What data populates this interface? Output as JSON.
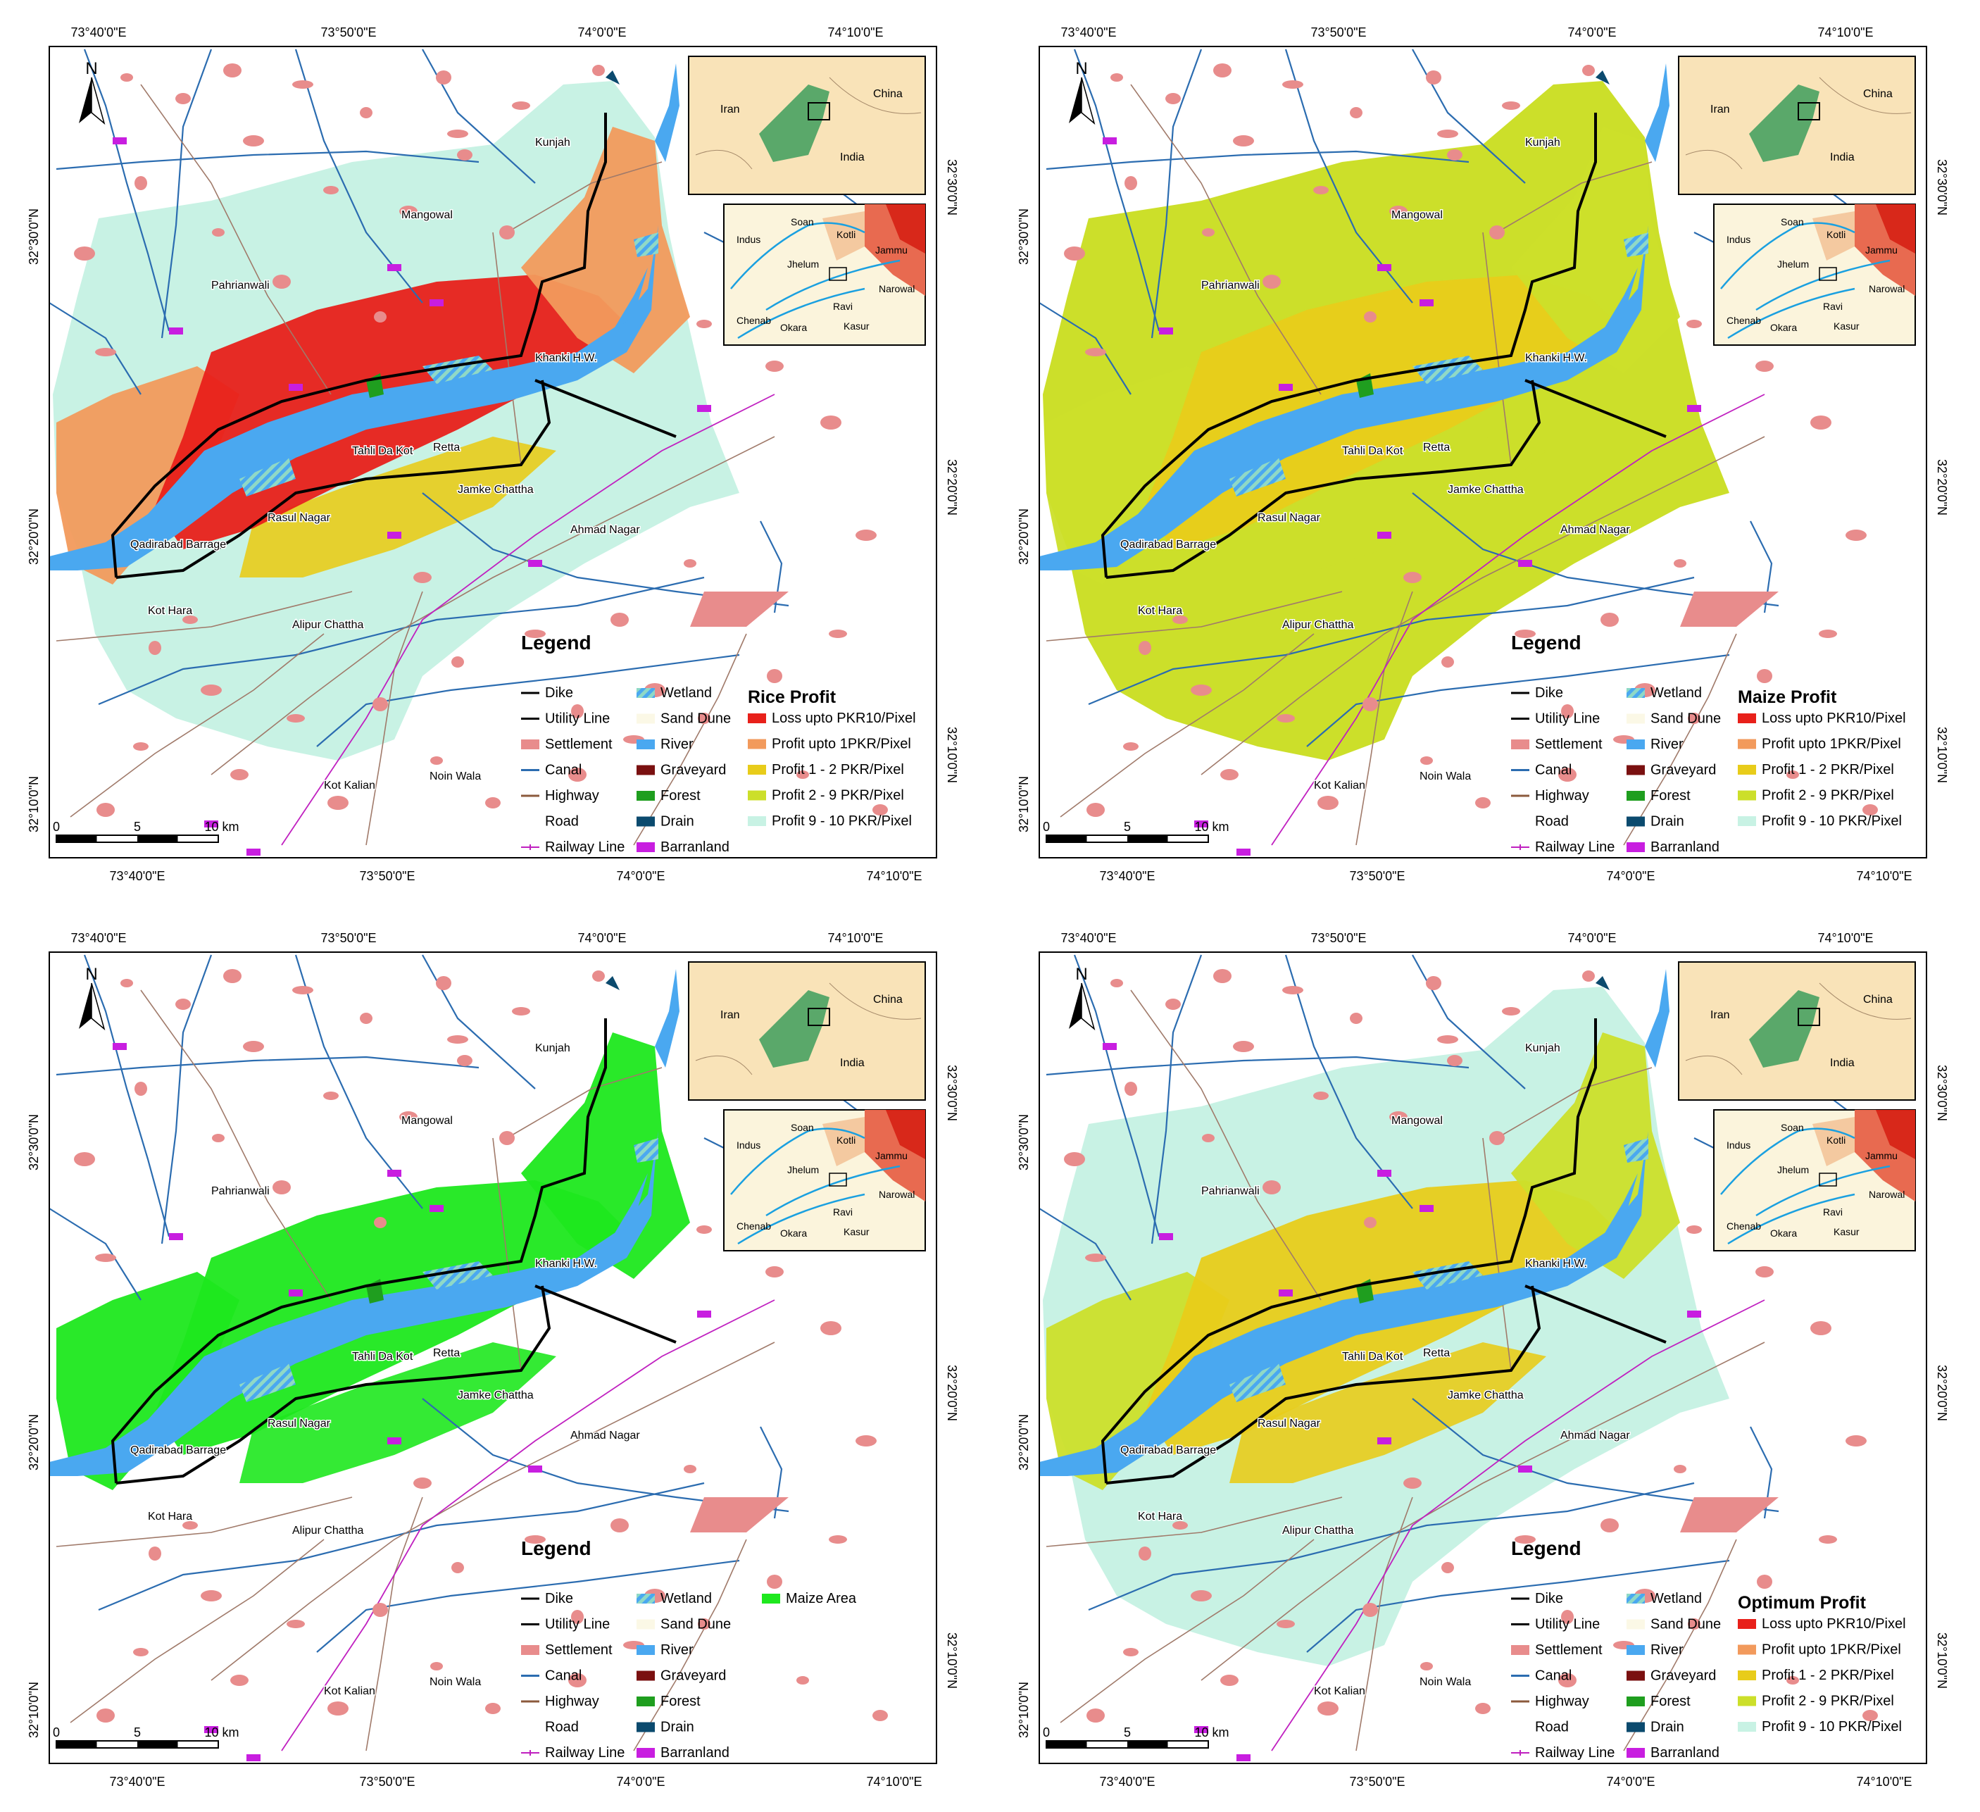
{
  "coords": {
    "top_lon": [
      "73°40'0\"E",
      "73°50'0\"E",
      "74°0'0\"E",
      "74°10'0\"E"
    ],
    "bottom_lon": [
      "73°40'0\"E",
      "73°50'0\"E",
      "74°0'0\"E",
      "74°10'0\"E"
    ],
    "left_lat": [
      "32°30'0\"N",
      "32°20'0\"N",
      "32°10'0\"N"
    ],
    "right_lat": [
      "32°30'0\"N",
      "32°20'0\"N",
      "32°10'0\"N"
    ]
  },
  "places": [
    "Kunjah",
    "Mangowal",
    "Pahrianwali",
    "Khanki H.W.",
    "Tahli Da Kot",
    "Retta",
    "Jamke Chattha",
    "Rasul Nagar",
    "Qadirabad Barrage",
    "Ahmad Nagar",
    "Kot Hara",
    "Alipur Chattha",
    "Kot Kalian",
    "Noin Wala"
  ],
  "inset_country": {
    "iran": "Iran",
    "china": "China",
    "india": "India"
  },
  "inset_region": {
    "indus": "Indus",
    "soan": "Soan",
    "kotli": "Kotli",
    "jhelum": "Jhelum",
    "jammu": "Jammu",
    "narowal": "Narowal",
    "chenab": "Chenab",
    "ravi": "Ravi",
    "okara": "Okara",
    "kasur": "Kasur"
  },
  "north": "N",
  "scale": {
    "ticks": [
      "0",
      "5",
      "10 km"
    ]
  },
  "legend": {
    "title": "Legend",
    "left": [
      {
        "label": "Dike",
        "symbol": "line",
        "color": "#000000"
      },
      {
        "label": "Utility Line",
        "symbol": "line",
        "color": "#000000"
      },
      {
        "label": "Settlement",
        "symbol": "box",
        "color": "#e88c8c"
      },
      {
        "label": "Canal",
        "symbol": "line",
        "color": "#2b6cb0"
      },
      {
        "label": "Highway",
        "symbol": "line",
        "color": "#8b5a3c"
      },
      {
        "label": "Road",
        "symbol": "none",
        "color": "#ffffff"
      },
      {
        "label": "Railway Line",
        "symbol": "rail",
        "color": "#c020c0"
      }
    ],
    "mid": [
      {
        "label": "Wetland",
        "symbol": "hatch",
        "color": "#7fd3c0"
      },
      {
        "label": "Sand Dune",
        "symbol": "box",
        "color": "#fbf8e6"
      },
      {
        "label": "River",
        "symbol": "box",
        "color": "#4aa8f0"
      },
      {
        "label": "Graveyard",
        "symbol": "box",
        "color": "#7a1010"
      },
      {
        "label": "Forest",
        "symbol": "box",
        "color": "#1f9e1f"
      },
      {
        "label": "Drain",
        "symbol": "box",
        "color": "#0b4a6e"
      },
      {
        "label": "Barranland",
        "symbol": "box",
        "color": "#c81ee0"
      }
    ]
  },
  "profit_classes": [
    {
      "label": "Loss upto PKR10/Pixel",
      "color": "#e8201a"
    },
    {
      "label": "Profit upto 1PKR/Pixel",
      "color": "#f29a5c"
    },
    {
      "label": "Profit 1 - 2 PKR/Pixel",
      "color": "#e8cc1a"
    },
    {
      "label": "Profit 2 - 9 PKR/Pixel",
      "color": "#ccdf2a"
    },
    {
      "label": "Profit 9 - 10 PKR/Pixel",
      "color": "#c8f2e4"
    }
  ],
  "panels": [
    {
      "id": "rice",
      "title": "Rice Profit",
      "palette": [
        "#c8f2e4",
        "#e8cc1a",
        "#f29a5c",
        "#e8201a",
        "#f29a5c"
      ]
    },
    {
      "id": "maize",
      "title": "Maize Profit",
      "palette": [
        "#ccdf2a",
        "#ccdf2a",
        "#ccdf2a",
        "#e8cc1a",
        "#ccdf2a"
      ]
    },
    {
      "id": "maize-area",
      "title": "",
      "extra": {
        "label": "Maize Area",
        "color": "#1ee81e"
      },
      "palette": [
        "#ffffff",
        "#1ee81e",
        "#1ee81e",
        "#1ee81e",
        "#1ee81e"
      ]
    },
    {
      "id": "optimum",
      "title": "Optimum Profit",
      "palette": [
        "#c8f2e4",
        "#e8cc1a",
        "#ccdf2a",
        "#e8cc1a",
        "#ccdf2a"
      ]
    }
  ]
}
